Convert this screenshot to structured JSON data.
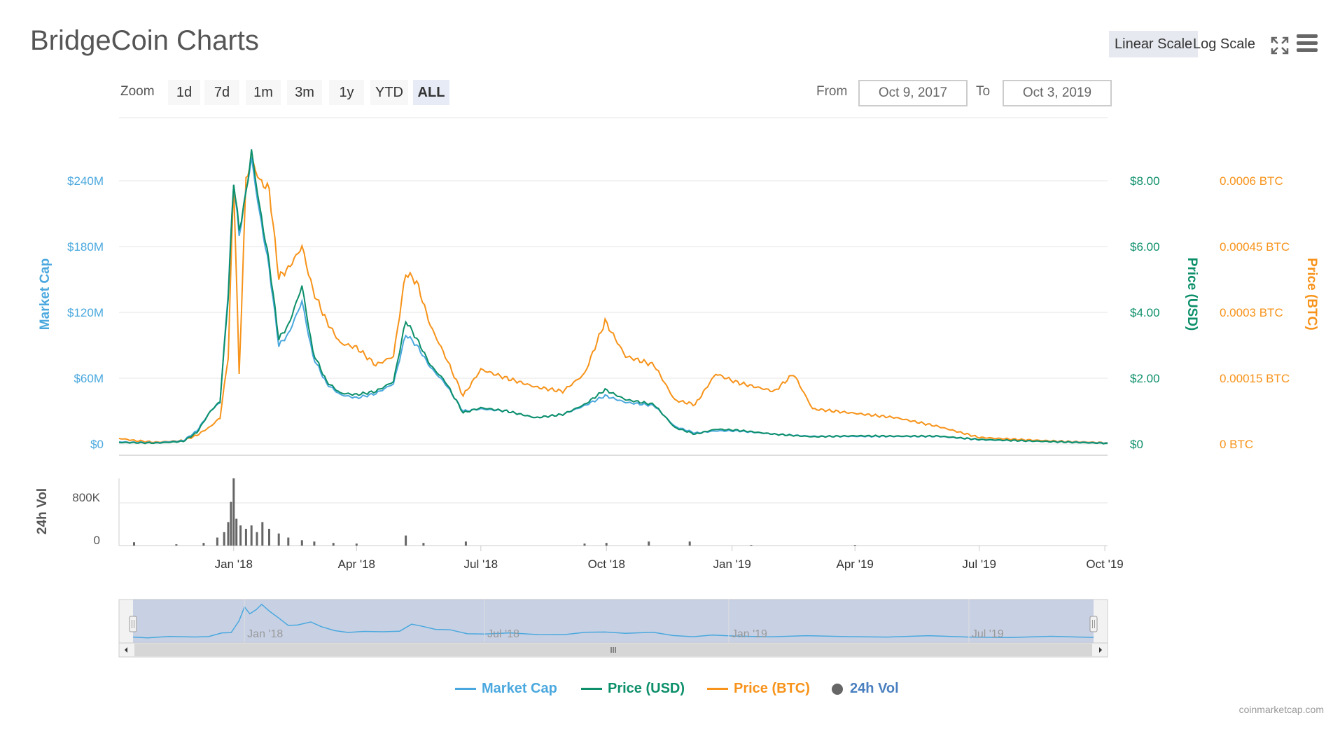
{
  "title": "BridgeCoin Charts",
  "scale": {
    "linear": "Linear Scale",
    "log": "Log Scale",
    "selected": "linear"
  },
  "icons": {
    "fullscreen": "fullscreen-icon",
    "menu": "hamburger-menu-icon"
  },
  "zoom": {
    "label": "Zoom",
    "buttons": [
      "1d",
      "7d",
      "1m",
      "3m",
      "1y",
      "YTD",
      "ALL"
    ],
    "selected": "ALL"
  },
  "range": {
    "from_label": "From",
    "from": "Oct 9, 2017",
    "to_label": "To",
    "to": "Oct 3, 2019"
  },
  "credits": "coinmarketcap.com",
  "colors": {
    "market_cap": "#4aa8de",
    "price_usd": "#0c8f6a",
    "price_btc": "#f7931a",
    "volume": "#666666"
  },
  "chart_data": {
    "type": "line",
    "x_range": [
      "2017-10-09",
      "2019-10-03"
    ],
    "x_ticks": [
      "Jan '18",
      "Apr '18",
      "Jul '18",
      "Oct '18",
      "Jan '19",
      "Apr '19",
      "Jul '19",
      "Oct '19"
    ],
    "axes": {
      "market_cap": {
        "label": "Market Cap",
        "ticks": [
          "$0",
          "$60M",
          "$120M",
          "$180M",
          "$240M"
        ],
        "ylim": [
          0,
          240000000
        ]
      },
      "price_usd": {
        "label": "Price (USD)",
        "ticks": [
          "$0",
          "$2.00",
          "$4.00",
          "$6.00",
          "$8.00"
        ],
        "ylim": [
          0,
          8
        ]
      },
      "price_btc": {
        "label": "Price (BTC)",
        "ticks": [
          "0 BTC",
          "0.00015 BTC",
          "0.0003 BTC",
          "0.00045 BTC",
          "0.0006 BTC"
        ],
        "ylim": [
          0,
          0.0006
        ]
      },
      "volume": {
        "label": "24h Vol",
        "ticks": [
          "0",
          "800K"
        ],
        "ylim": [
          0,
          1000000
        ]
      }
    },
    "series": [
      {
        "name": "Market Cap",
        "axis": "market_cap",
        "points": [
          [
            "2017-10-09",
            2000000
          ],
          [
            "2017-10-20",
            1500000
          ],
          [
            "2017-11-05",
            1200000
          ],
          [
            "2017-11-25",
            3000000
          ],
          [
            "2017-12-05",
            12000000
          ],
          [
            "2017-12-15",
            30000000
          ],
          [
            "2017-12-22",
            38000000
          ],
          [
            "2017-12-28",
            140000000
          ],
          [
            "2018-01-01",
            240000000
          ],
          [
            "2018-01-05",
            190000000
          ],
          [
            "2018-01-10",
            230000000
          ],
          [
            "2018-01-14",
            260000000
          ],
          [
            "2018-01-20",
            210000000
          ],
          [
            "2018-01-27",
            160000000
          ],
          [
            "2018-02-03",
            90000000
          ],
          [
            "2018-02-10",
            100000000
          ],
          [
            "2018-02-20",
            130000000
          ],
          [
            "2018-02-28",
            80000000
          ],
          [
            "2018-03-10",
            55000000
          ],
          [
            "2018-03-20",
            45000000
          ],
          [
            "2018-04-01",
            42000000
          ],
          [
            "2018-04-15",
            46000000
          ],
          [
            "2018-04-28",
            55000000
          ],
          [
            "2018-05-07",
            100000000
          ],
          [
            "2018-05-15",
            90000000
          ],
          [
            "2018-05-25",
            70000000
          ],
          [
            "2018-06-05",
            55000000
          ],
          [
            "2018-06-18",
            30000000
          ],
          [
            "2018-07-01",
            32000000
          ],
          [
            "2018-07-20",
            30000000
          ],
          [
            "2018-08-10",
            24000000
          ],
          [
            "2018-08-30",
            27000000
          ],
          [
            "2018-09-15",
            35000000
          ],
          [
            "2018-09-30",
            44000000
          ],
          [
            "2018-10-15",
            38000000
          ],
          [
            "2018-11-05",
            35000000
          ],
          [
            "2018-11-20",
            16000000
          ],
          [
            "2018-12-05",
            10000000
          ],
          [
            "2018-12-20",
            12000000
          ],
          [
            "2019-01-05",
            12000000
          ],
          [
            "2019-02-01",
            9000000
          ],
          [
            "2019-03-01",
            7000000
          ],
          [
            "2019-04-01",
            7000000
          ],
          [
            "2019-05-01",
            7000000
          ],
          [
            "2019-06-01",
            7000000
          ],
          [
            "2019-07-01",
            4000000
          ],
          [
            "2019-08-01",
            3000000
          ],
          [
            "2019-09-01",
            2000000
          ],
          [
            "2019-10-03",
            1000000
          ]
        ]
      },
      {
        "name": "Price (USD)",
        "axis": "price_usd",
        "points": [
          [
            "2017-10-09",
            0.05
          ],
          [
            "2017-10-20",
            0.04
          ],
          [
            "2017-11-05",
            0.03
          ],
          [
            "2017-11-25",
            0.08
          ],
          [
            "2017-12-05",
            0.35
          ],
          [
            "2017-12-15",
            1.0
          ],
          [
            "2017-12-22",
            1.3
          ],
          [
            "2017-12-28",
            4.5
          ],
          [
            "2018-01-01",
            8.0
          ],
          [
            "2018-01-05",
            6.5
          ],
          [
            "2018-01-10",
            7.6
          ],
          [
            "2018-01-14",
            8.9
          ],
          [
            "2018-01-20",
            7.2
          ],
          [
            "2018-01-27",
            5.5
          ],
          [
            "2018-02-03",
            3.2
          ],
          [
            "2018-02-10",
            3.6
          ],
          [
            "2018-02-20",
            4.8
          ],
          [
            "2018-02-28",
            2.8
          ],
          [
            "2018-03-10",
            1.9
          ],
          [
            "2018-03-20",
            1.55
          ],
          [
            "2018-04-01",
            1.5
          ],
          [
            "2018-04-15",
            1.6
          ],
          [
            "2018-04-28",
            1.9
          ],
          [
            "2018-05-07",
            3.75
          ],
          [
            "2018-05-15",
            3.2
          ],
          [
            "2018-05-25",
            2.4
          ],
          [
            "2018-06-05",
            1.9
          ],
          [
            "2018-06-18",
            0.95
          ],
          [
            "2018-07-01",
            1.1
          ],
          [
            "2018-07-20",
            1.0
          ],
          [
            "2018-08-10",
            0.8
          ],
          [
            "2018-08-30",
            0.9
          ],
          [
            "2018-09-15",
            1.2
          ],
          [
            "2018-09-30",
            1.65
          ],
          [
            "2018-10-15",
            1.35
          ],
          [
            "2018-11-05",
            1.2
          ],
          [
            "2018-11-20",
            0.5
          ],
          [
            "2018-12-05",
            0.3
          ],
          [
            "2018-12-20",
            0.45
          ],
          [
            "2019-01-05",
            0.42
          ],
          [
            "2019-02-01",
            0.3
          ],
          [
            "2019-03-01",
            0.22
          ],
          [
            "2019-04-01",
            0.25
          ],
          [
            "2019-05-01",
            0.24
          ],
          [
            "2019-06-01",
            0.24
          ],
          [
            "2019-07-01",
            0.14
          ],
          [
            "2019-08-01",
            0.1
          ],
          [
            "2019-09-01",
            0.06
          ],
          [
            "2019-10-03",
            0.02
          ]
        ]
      },
      {
        "name": "Price (BTC)",
        "axis": "price_btc",
        "points": [
          [
            "2017-10-09",
            1.3e-05
          ],
          [
            "2017-10-20",
            8e-06
          ],
          [
            "2017-11-05",
            4e-06
          ],
          [
            "2017-11-25",
            8e-06
          ],
          [
            "2017-12-05",
            2e-05
          ],
          [
            "2017-12-15",
            4e-05
          ],
          [
            "2017-12-22",
            6e-05
          ],
          [
            "2017-12-28",
            0.0002
          ],
          [
            "2018-01-01",
            0.0006
          ],
          [
            "2018-01-05",
            0.00016
          ],
          [
            "2018-01-10",
            0.0006
          ],
          [
            "2018-01-14",
            0.00065
          ],
          [
            "2018-01-20",
            0.0006
          ],
          [
            "2018-01-27",
            0.00058
          ],
          [
            "2018-02-03",
            0.00038
          ],
          [
            "2018-02-10",
            0.0004
          ],
          [
            "2018-02-20",
            0.00045
          ],
          [
            "2018-02-28",
            0.00035
          ],
          [
            "2018-03-10",
            0.00028
          ],
          [
            "2018-03-20",
            0.00023
          ],
          [
            "2018-04-01",
            0.00022
          ],
          [
            "2018-04-15",
            0.00018
          ],
          [
            "2018-04-28",
            0.0002
          ],
          [
            "2018-05-07",
            0.00039
          ],
          [
            "2018-05-15",
            0.00037
          ],
          [
            "2018-05-25",
            0.00027
          ],
          [
            "2018-06-05",
            0.0002
          ],
          [
            "2018-06-18",
            0.00011
          ],
          [
            "2018-07-01",
            0.00017
          ],
          [
            "2018-07-20",
            0.00015
          ],
          [
            "2018-08-10",
            0.00013
          ],
          [
            "2018-08-30",
            0.00012
          ],
          [
            "2018-09-15",
            0.00016
          ],
          [
            "2018-09-30",
            0.00028
          ],
          [
            "2018-10-15",
            0.0002
          ],
          [
            "2018-11-05",
            0.00018
          ],
          [
            "2018-11-20",
            0.0001
          ],
          [
            "2018-12-05",
            9e-05
          ],
          [
            "2018-12-20",
            0.00016
          ],
          [
            "2019-01-05",
            0.00014
          ],
          [
            "2019-02-01",
            0.00012
          ],
          [
            "2019-02-15",
            0.00016
          ],
          [
            "2019-03-01",
            8e-05
          ],
          [
            "2019-04-01",
            7e-05
          ],
          [
            "2019-05-01",
            6e-05
          ],
          [
            "2019-06-01",
            4e-05
          ],
          [
            "2019-07-01",
            1.5e-05
          ],
          [
            "2019-08-01",
            1e-05
          ],
          [
            "2019-09-01",
            6e-06
          ],
          [
            "2019-10-03",
            3e-06
          ]
        ]
      },
      {
        "name": "24h Vol",
        "axis": "volume",
        "type": "column",
        "points": [
          [
            "2017-10-20",
            50000
          ],
          [
            "2017-11-20",
            20000
          ],
          [
            "2017-12-10",
            40000
          ],
          [
            "2017-12-20",
            120000
          ],
          [
            "2017-12-25",
            200000
          ],
          [
            "2017-12-28",
            350000
          ],
          [
            "2017-12-30",
            650000
          ],
          [
            "2018-01-01",
            1000000
          ],
          [
            "2018-01-03",
            400000
          ],
          [
            "2018-01-06",
            300000
          ],
          [
            "2018-01-10",
            250000
          ],
          [
            "2018-01-14",
            300000
          ],
          [
            "2018-01-18",
            200000
          ],
          [
            "2018-01-22",
            350000
          ],
          [
            "2018-01-27",
            250000
          ],
          [
            "2018-02-03",
            180000
          ],
          [
            "2018-02-10",
            120000
          ],
          [
            "2018-02-20",
            80000
          ],
          [
            "2018-03-01",
            60000
          ],
          [
            "2018-03-15",
            40000
          ],
          [
            "2018-04-01",
            30000
          ],
          [
            "2018-05-07",
            150000
          ],
          [
            "2018-05-20",
            40000
          ],
          [
            "2018-06-20",
            60000
          ],
          [
            "2018-09-15",
            30000
          ],
          [
            "2018-10-01",
            40000
          ],
          [
            "2018-11-01",
            60000
          ],
          [
            "2018-12-01",
            60000
          ],
          [
            "2019-01-15",
            10000
          ],
          [
            "2019-04-01",
            10000
          ]
        ]
      }
    ],
    "navigator": {
      "x_ticks": [
        "Jan '18",
        "Jul '18",
        "Jan '19",
        "Jul '19"
      ]
    },
    "legend": [
      "Market Cap",
      "Price (USD)",
      "Price (BTC)",
      "24h Vol"
    ],
    "legend_position": "bottom-center",
    "grid": true
  }
}
